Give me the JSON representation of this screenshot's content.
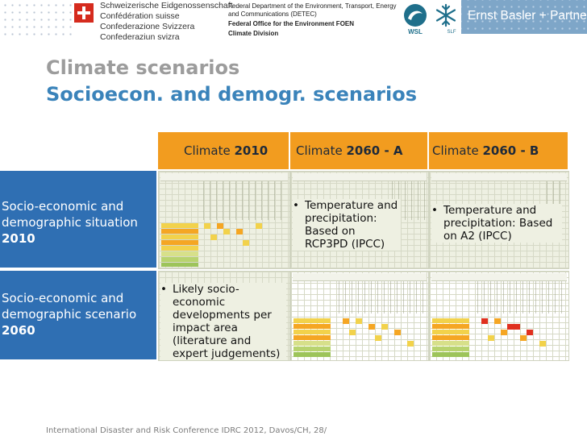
{
  "header": {
    "confed_lines": [
      "Schweizerische Eidgenossenschaft",
      "Confédération suisse",
      "Confederazione Svizzera",
      "Confederaziun svizra"
    ],
    "dept_line1": "Federal Department of the Environment, Transport, Energy and Communications (DETEC)",
    "dept_line2": "Federal Office for the Environment FOEN",
    "dept_line3": "Climate Division",
    "logo_wsl": "WSL",
    "logo_slf": "SLF",
    "company": "Ernst Basler + Partner"
  },
  "title": {
    "line1": "Climate scenarios",
    "line2": "Socioecon. and demogr. scenarios"
  },
  "columns": [
    {
      "prefix": "Climate ",
      "bold": "2010"
    },
    {
      "prefix": "Climate ",
      "bold": "2060 - A"
    },
    {
      "prefix": "Climate ",
      "bold": "2060 - B"
    }
  ],
  "rows": [
    {
      "text": "Socio-economic and demographic situation ",
      "bold": "2010"
    },
    {
      "text": "Socio-economic and demographic scenario ",
      "bold": "2060"
    }
  ],
  "bullets": {
    "r1c2": "Temperature and precipitation: Based on RCP3PD (IPCC)",
    "r1c3": "Temperature and precipitation: Based on A2 (IPCC)",
    "r2c1": "Likely socio-economic developments per impact area (literature and expert judgements)"
  },
  "footer": "International Disaster and Risk Conference IDRC 2012, Davos/CH, 28/"
}
